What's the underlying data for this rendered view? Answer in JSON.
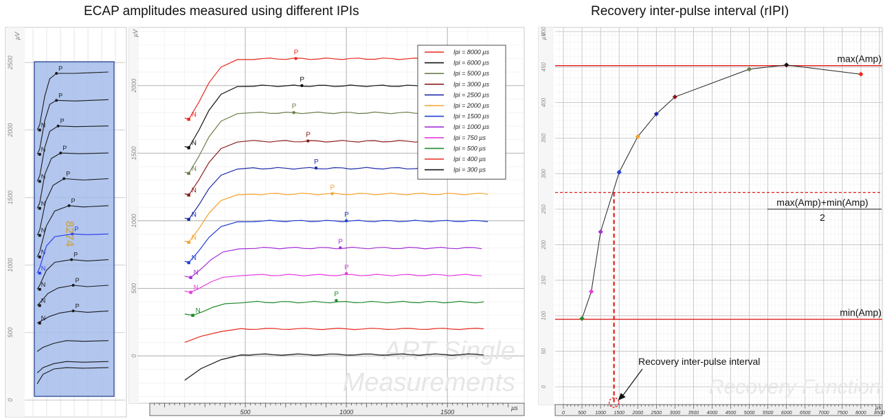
{
  "titles": {
    "left": "ECAP amplitudes measured using different IPIs",
    "right": "Recovery inter-pulse interval (rIPI)"
  },
  "colors": {
    "background": "#ffffff",
    "grid": "#d4d4d4",
    "overview_fill": "#9fb8ea",
    "overview_stroke": "#1e3a8a",
    "threshold_line": "#e01b1b",
    "ruler_bg": "#eeeeee"
  },
  "chart_data": [
    {
      "type": "line",
      "id": "overview",
      "title": "",
      "ylabel": "µV",
      "ylim": [
        -100,
        2750
      ],
      "yticks": [
        0,
        500,
        1000,
        1500,
        2000,
        2500
      ],
      "overlay_text": "8274",
      "series": [
        {
          "color": "#1a1a1a",
          "n_mark": [
            8,
            2000
          ],
          "p_mark": [
            28,
            2420
          ],
          "curve": [
            [
              5,
              2000
            ],
            [
              8,
              2040
            ],
            [
              14,
              2250
            ],
            [
              20,
              2380
            ],
            [
              28,
              2420
            ],
            [
              50,
              2420
            ],
            [
              90,
              2430
            ]
          ]
        },
        {
          "color": "#1a1a1a",
          "n_mark": [
            8,
            1820
          ],
          "p_mark": [
            28,
            2220
          ],
          "curve": [
            [
              5,
              1820
            ],
            [
              8,
              1860
            ],
            [
              14,
              2070
            ],
            [
              20,
              2190
            ],
            [
              28,
              2220
            ],
            [
              50,
              2215
            ],
            [
              90,
              2225
            ]
          ]
        },
        {
          "color": "#1a1a1a",
          "n_mark": [
            8,
            1620
          ],
          "p_mark": [
            30,
            2030
          ],
          "curve": [
            [
              5,
              1620
            ],
            [
              8,
              1660
            ],
            [
              14,
              1870
            ],
            [
              20,
              1990
            ],
            [
              30,
              2030
            ],
            [
              50,
              2025
            ],
            [
              90,
              2030
            ]
          ]
        },
        {
          "color": "#1a1a1a",
          "n_mark": [
            8,
            1420
          ],
          "p_mark": [
            33,
            1830
          ],
          "curve": [
            [
              5,
              1420
            ],
            [
              8,
              1460
            ],
            [
              14,
              1670
            ],
            [
              22,
              1790
            ],
            [
              33,
              1830
            ],
            [
              55,
              1825
            ],
            [
              90,
              1830
            ]
          ]
        },
        {
          "color": "#1a1a1a",
          "n_mark": [
            8,
            1220
          ],
          "p_mark": [
            37,
            1640
          ],
          "curve": [
            [
              5,
              1220
            ],
            [
              8,
              1260
            ],
            [
              15,
              1470
            ],
            [
              24,
              1590
            ],
            [
              37,
              1640
            ],
            [
              60,
              1630
            ],
            [
              90,
              1640
            ]
          ]
        },
        {
          "color": "#1a1a1a",
          "n_mark": [
            8,
            1060
          ],
          "p_mark": [
            43,
            1440
          ],
          "curve": [
            [
              5,
              1060
            ],
            [
              8,
              1100
            ],
            [
              16,
              1290
            ],
            [
              26,
              1400
            ],
            [
              43,
              1440
            ],
            [
              60,
              1430
            ],
            [
              90,
              1440
            ]
          ]
        },
        {
          "color": "#2233ee",
          "n_mark": [
            8,
            940
          ],
          "p_mark": [
            47,
            1230
          ],
          "curve": [
            [
              5,
              940
            ],
            [
              8,
              980
            ],
            [
              16,
              1140
            ],
            [
              26,
              1210
            ],
            [
              47,
              1230
            ],
            [
              65,
              1225
            ],
            [
              90,
              1230
            ]
          ]
        },
        {
          "color": "#1a1a1a",
          "n_mark": [
            8,
            820
          ],
          "p_mark": [
            46,
            1040
          ],
          "curve": [
            [
              5,
              820
            ],
            [
              8,
              850
            ],
            [
              16,
              960
            ],
            [
              26,
              1020
            ],
            [
              46,
              1040
            ],
            [
              65,
              1030
            ],
            [
              90,
              1040
            ]
          ]
        },
        {
          "color": "#1a1a1a",
          "n_mark": [
            8,
            700
          ],
          "p_mark": [
            48,
            850
          ],
          "curve": [
            [
              5,
              700
            ],
            [
              8,
              720
            ],
            [
              18,
              790
            ],
            [
              30,
              830
            ],
            [
              48,
              850
            ],
            [
              65,
              840
            ],
            [
              90,
              850
            ]
          ]
        },
        {
          "color": "#1a1a1a",
          "n_mark": [
            8,
            570
          ],
          "p_mark": [
            48,
            660
          ],
          "curve": [
            [
              5,
              570
            ],
            [
              8,
              580
            ],
            [
              20,
              620
            ],
            [
              32,
              645
            ],
            [
              48,
              660
            ],
            [
              65,
              650
            ],
            [
              90,
              660
            ]
          ]
        },
        {
          "color": "#1a1a1a",
          "n_mark": null,
          "p_mark": null,
          "curve": [
            [
              5,
              360
            ],
            [
              12,
              390
            ],
            [
              25,
              420
            ],
            [
              40,
              440
            ],
            [
              60,
              435
            ],
            [
              90,
              440
            ]
          ]
        },
        {
          "color": "#1a1a1a",
          "n_mark": null,
          "p_mark": null,
          "curve": [
            [
              5,
              200
            ],
            [
              12,
              240
            ],
            [
              25,
              270
            ],
            [
              40,
              285
            ],
            [
              60,
              280
            ],
            [
              90,
              285
            ]
          ]
        },
        {
          "color": "#1a1a1a",
          "n_mark": null,
          "p_mark": null,
          "curve": [
            [
              5,
              120
            ],
            [
              12,
              190
            ],
            [
              25,
              230
            ],
            [
              40,
              240
            ],
            [
              60,
              236
            ],
            [
              90,
              240
            ]
          ]
        }
      ]
    },
    {
      "type": "line",
      "id": "ecap-traces",
      "title": "ECAP amplitudes measured using different IPIs",
      "xlabel": "µs",
      "ylabel": "µV",
      "xlim": [
        0,
        1750
      ],
      "ylim": [
        -350,
        2430
      ],
      "xticks": [
        500,
        1000,
        1500
      ],
      "yticks": [
        0,
        500,
        1000,
        1500,
        2000
      ],
      "watermark": [
        "ART Single",
        "Measurements"
      ],
      "legend": {
        "position": "top-right"
      },
      "series": [
        {
          "name": "Ipi = 8000 µs",
          "color": "#e8291c",
          "n": [
            220,
            1750
          ],
          "p": [
            750,
            2200
          ],
          "plateau": 2200
        },
        {
          "name": "Ipi = 6000 µs",
          "color": "#111111",
          "n": [
            220,
            1540
          ],
          "p": [
            780,
            2000
          ],
          "plateau": 2000
        },
        {
          "name": "Ipi = 5000 µs",
          "color": "#6b7d4a",
          "n": [
            220,
            1350
          ],
          "p": [
            740,
            1800
          ],
          "plateau": 1800
        },
        {
          "name": "Ipi = 3000 µs",
          "color": "#8b1a1a",
          "n": [
            220,
            1190
          ],
          "p": [
            810,
            1590
          ],
          "plateau": 1590
        },
        {
          "name": "Ipi = 2500 µs",
          "color": "#1c2aa8",
          "n": [
            220,
            1010
          ],
          "p": [
            850,
            1390
          ],
          "plateau": 1390
        },
        {
          "name": "Ipi = 2000 µs",
          "color": "#f5a22a",
          "n": [
            220,
            840
          ],
          "p": [
            930,
            1200
          ],
          "plateau": 1200
        },
        {
          "name": "Ipi = 1500 µs",
          "color": "#1f3fd6",
          "n": [
            220,
            690
          ],
          "p": [
            1000,
            1000
          ],
          "plateau": 1000
        },
        {
          "name": "Ipi = 1000 µs",
          "color": "#a52ed6",
          "n": [
            230,
            580
          ],
          "p": [
            970,
            800
          ],
          "plateau": 800
        },
        {
          "name": "Ipi = 750 µs",
          "color": "#e83ae0",
          "n": [
            230,
            470
          ],
          "p": [
            1000,
            610
          ],
          "plateau": 600
        },
        {
          "name": "Ipi = 500 µs",
          "color": "#1f8a2a",
          "n": [
            240,
            300
          ],
          "p": [
            950,
            410
          ],
          "plateau": 400
        },
        {
          "name": "Ipi = 400 µs",
          "color": "#e8291c",
          "n": null,
          "p": null,
          "plateau": 200,
          "start": 100
        },
        {
          "name": "Ipi = 300 µs",
          "color": "#111111",
          "n": null,
          "p": null,
          "plateau": 10,
          "start": -180
        }
      ]
    },
    {
      "type": "line",
      "id": "recovery-function",
      "title": "Recovery inter-pulse interval (rIPI)",
      "xlabel": "µs",
      "ylabel": "µV",
      "xlim": [
        -100,
        8600
      ],
      "ylim": [
        -35,
        510
      ],
      "xticks": [
        0,
        500,
        1000,
        1500,
        2000,
        2500,
        3000,
        3500,
        4000,
        4500,
        5000,
        5500,
        6000,
        6500,
        7000,
        7500,
        8000,
        8500
      ],
      "yticks": [
        0,
        50,
        100,
        150,
        200,
        250,
        300,
        350,
        400,
        450,
        500
      ],
      "watermark": "Recovery Function",
      "points": [
        {
          "x": 500,
          "y": 96,
          "color": "#1f8a2a"
        },
        {
          "x": 750,
          "y": 134,
          "color": "#e83ae0"
        },
        {
          "x": 1000,
          "y": 218,
          "color": "#a52ed6"
        },
        {
          "x": 1500,
          "y": 302,
          "color": "#1f3fd6"
        },
        {
          "x": 2000,
          "y": 352,
          "color": "#f5a22a"
        },
        {
          "x": 2500,
          "y": 384,
          "color": "#1c2aa8"
        },
        {
          "x": 3000,
          "y": 408,
          "color": "#8b1a1a"
        },
        {
          "x": 5000,
          "y": 447,
          "color": "#6b7d4a"
        },
        {
          "x": 6000,
          "y": 453,
          "color": "#111111"
        },
        {
          "x": 8000,
          "y": 440,
          "color": "#e8291c"
        }
      ],
      "max_amp": 452,
      "min_amp": 95,
      "half_level": 273.5,
      "ripi": 1360,
      "annotations": {
        "max_label": "max(Amp)",
        "min_label": "min(Amp)",
        "mid_numerator": "max(Amp)+min(Amp)",
        "mid_denominator": "2",
        "arrow_label": "Recovery inter-pulse interval"
      }
    }
  ],
  "labels": {
    "n": "N",
    "p": "P"
  }
}
